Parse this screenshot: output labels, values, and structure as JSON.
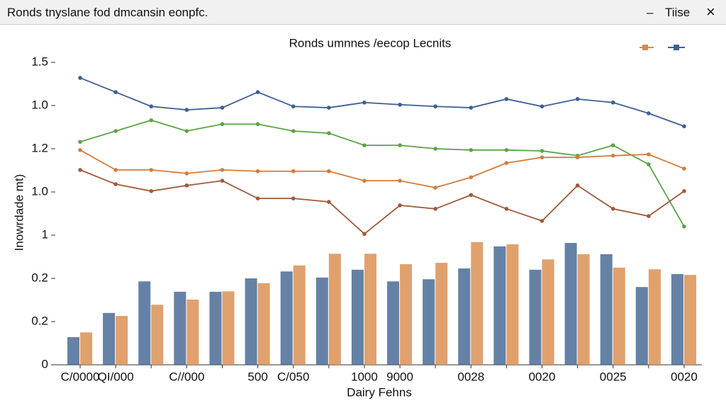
{
  "window": {
    "title": "Ronds tnyslane fod dmcansin eonpfc.",
    "minimize": "–",
    "menu": "Tiise",
    "close": "×"
  },
  "chart_data": {
    "type": "bar-line",
    "title": "Ronds umnnes /eecop Lecnits",
    "x_label": "Dairy Fehns",
    "y_label": "Inowrdade mt)",
    "categories": [
      "C/0000",
      "QI/000",
      null,
      "C//000",
      null,
      "500",
      "C/050",
      null,
      "1000",
      "9000",
      null,
      "0028",
      null,
      "0020",
      null,
      "0025",
      null,
      "0020"
    ],
    "ylim": [
      0,
      7
    ],
    "yticks": [
      0,
      {
        "value": 1,
        "label": "0.2"
      },
      {
        "value": 2,
        "label": "0.2"
      },
      {
        "value": 3,
        "label": "1"
      },
      {
        "value": 4,
        "label": "1.0"
      },
      {
        "value": 5,
        "label": "1.2"
      },
      {
        "value": 6,
        "label": "1.0"
      },
      {
        "value": 7,
        "label": "1.5"
      }
    ],
    "bar_series": [
      {
        "color": "#3f6390",
        "values": [
          0.64,
          1.2,
          1.93,
          1.69,
          1.69,
          2.0,
          2.16,
          2.02,
          2.2,
          1.93,
          1.98,
          2.23,
          2.74,
          2.2,
          2.82,
          2.56,
          1.8,
          2.1
        ]
      },
      {
        "color": "#d9894a",
        "values": [
          0.75,
          1.13,
          1.39,
          1.51,
          1.7,
          1.89,
          2.3,
          2.57,
          2.57,
          2.33,
          2.36,
          2.84,
          2.79,
          2.44,
          2.56,
          2.25,
          2.21,
          2.08
        ]
      }
    ],
    "line_series": [
      {
        "color": "#3d5f94",
        "values": [
          6.64,
          6.31,
          5.98,
          5.9,
          5.95,
          6.31,
          5.98,
          5.95,
          6.07,
          6.02,
          5.98,
          5.95,
          6.15,
          5.98,
          6.15,
          6.07,
          5.82,
          5.52
        ]
      },
      {
        "color": "#5aa446",
        "values": [
          5.16,
          5.41,
          5.66,
          5.41,
          5.57,
          5.57,
          5.41,
          5.36,
          5.08,
          5.08,
          5.0,
          4.97,
          4.97,
          4.95,
          4.84,
          5.08,
          4.64,
          3.2
        ]
      },
      {
        "color": "#d47c3a",
        "values": [
          4.97,
          4.51,
          4.51,
          4.43,
          4.51,
          4.48,
          4.48,
          4.48,
          4.26,
          4.26,
          4.1,
          4.34,
          4.67,
          4.8,
          4.8,
          4.84,
          4.87,
          4.54
        ]
      },
      {
        "color": "#9e5a3c",
        "values": [
          4.51,
          4.18,
          4.02,
          4.15,
          4.26,
          3.85,
          3.85,
          3.77,
          3.03,
          3.69,
          3.61,
          3.93,
          3.61,
          3.33,
          4.15,
          3.61,
          3.44,
          4.02
        ]
      }
    ]
  }
}
